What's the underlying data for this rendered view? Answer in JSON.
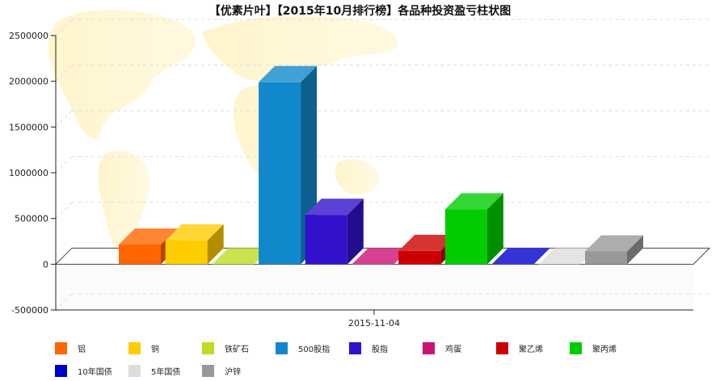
{
  "chart_data": {
    "type": "bar",
    "title": "【优素片叶】【2015年10月排行榜】各品种投资盈亏柱状图",
    "categories": [
      "2015-11-04"
    ],
    "xlabel": "",
    "ylabel": "",
    "ylim": [
      -500000,
      2500000
    ],
    "yticks": [
      2500000,
      2000000,
      1500000,
      1000000,
      500000,
      0,
      -500000
    ],
    "grid": true,
    "legend_position": "bottom",
    "three_d": true,
    "series": [
      {
        "name": "铝",
        "color": "#ff6600",
        "values": [
          215000
        ]
      },
      {
        "name": "铜",
        "color": "#ffcc00",
        "values": [
          260000
        ]
      },
      {
        "name": "铁矿石",
        "color": "#bbdd22",
        "values": [
          0
        ]
      },
      {
        "name": "500股指",
        "color": "#1188cc",
        "values": [
          1990000
        ]
      },
      {
        "name": "股指",
        "color": "#3311cc",
        "values": [
          540000
        ]
      },
      {
        "name": "鸡蛋",
        "color": "#cc1177",
        "values": [
          0
        ]
      },
      {
        "name": "聚乙烯",
        "color": "#cc0000",
        "values": [
          145000
        ]
      },
      {
        "name": "聚丙烯",
        "color": "#00cc00",
        "values": [
          600000
        ]
      },
      {
        "name": "10年国债",
        "color": "#0000cc",
        "values": [
          0
        ]
      },
      {
        "name": "5年国债",
        "color": "#dddddd",
        "values": [
          0
        ]
      },
      {
        "name": "沪锌",
        "color": "#999999",
        "values": [
          140000
        ]
      }
    ]
  }
}
